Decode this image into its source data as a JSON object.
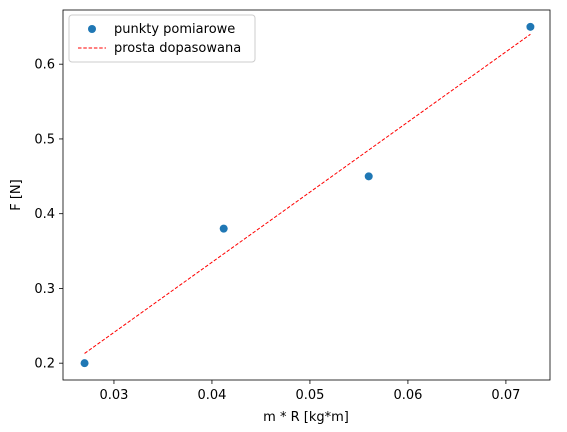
{
  "chart_data": {
    "type": "scatter",
    "xlabel": "m * R [kg*m]",
    "ylabel": "F [N]",
    "xlim": [
      0.0248,
      0.0745
    ],
    "ylim": [
      0.1775,
      0.6725
    ],
    "xticks": [
      0.03,
      0.04,
      0.05,
      0.06,
      0.07
    ],
    "xtick_labels": [
      "0.03",
      "0.04",
      "0.05",
      "0.06",
      "0.07"
    ],
    "yticks": [
      0.2,
      0.3,
      0.4,
      0.5,
      0.6
    ],
    "ytick_labels": [
      "0.2",
      "0.3",
      "0.4",
      "0.5",
      "0.6"
    ],
    "grid": false,
    "legend_position": "top-left",
    "series": [
      {
        "name": "punkty pomiarowe",
        "kind": "points",
        "color": "#1f77b4",
        "x": [
          0.027,
          0.0412,
          0.056,
          0.0725
        ],
        "y": [
          0.2,
          0.38,
          0.45,
          0.65
        ]
      },
      {
        "name": "prosta dopasowana",
        "kind": "dashed-line",
        "color": "#ff0000",
        "x": [
          0.027,
          0.0725
        ],
        "y": [
          0.213,
          0.64
        ]
      }
    ]
  }
}
